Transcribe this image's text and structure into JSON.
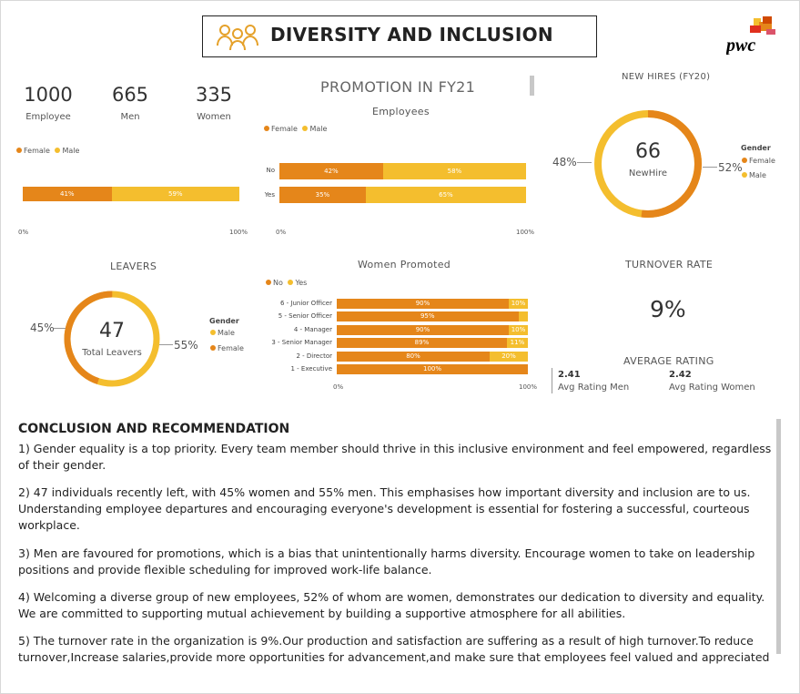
{
  "header": {
    "title": "DIVERSITY AND INCLUSION",
    "icon": "people-icon",
    "logo": "pwc"
  },
  "colors": {
    "female": "#E5861A",
    "male": "#F4BE2E",
    "track": "#E5861A"
  },
  "kpis": [
    {
      "value": "1000",
      "label": "Employee"
    },
    {
      "value": "665",
      "label": "Men"
    },
    {
      "value": "335",
      "label": "Women"
    }
  ],
  "promotion": {
    "title": "PROMOTION IN FY21",
    "subtitle": "Employees"
  },
  "women_promoted_title": "Women Promoted",
  "leavers": {
    "title": "LEAVERS",
    "center_value": "47",
    "center_label": "Total Leavers",
    "left_pct": "45%",
    "right_pct": "55%",
    "gender_title": "Gender",
    "legend": [
      "Male",
      "Female"
    ]
  },
  "new_hires": {
    "title": "NEW HIRES (FY20)",
    "center_value": "66",
    "center_label": "NewHire",
    "left_pct": "48%",
    "right_pct": "52%",
    "gender_title": "Gender",
    "legend": [
      "Female",
      "Male"
    ]
  },
  "turnover": {
    "title": "TURNOVER RATE",
    "value": "9%"
  },
  "rating": {
    "title": "AVERAGE RATING",
    "men_value": "2.41",
    "men_label": "Avg Rating Men",
    "women_value": "2.42",
    "women_label": "Avg Rating Women"
  },
  "axis": {
    "min_label": "0%",
    "max_label": "100%"
  },
  "legend_labels": {
    "female": "Female",
    "male": "Male",
    "no": "No",
    "yes": "Yes"
  },
  "chart_data": [
    {
      "type": "bar",
      "series": [
        {
          "name": "Female",
          "values": [
            41
          ]
        },
        {
          "name": "Male",
          "values": [
            59
          ]
        }
      ],
      "labels": [
        [
          "41%",
          "59%"
        ]
      ],
      "xlim": [
        0,
        100
      ]
    },
    {
      "type": "bar",
      "title": "PROMOTION IN FY21",
      "subtitle": "Employees",
      "categories": [
        "No",
        "Yes"
      ],
      "series": [
        {
          "name": "Female",
          "values": [
            42,
            35
          ]
        },
        {
          "name": "Male",
          "values": [
            58,
            65
          ]
        }
      ],
      "labels": [
        [
          "42%",
          "58%"
        ],
        [
          "35%",
          "65%"
        ]
      ],
      "xlim": [
        0,
        100
      ]
    },
    {
      "type": "bar",
      "title": "Women Promoted",
      "categories": [
        "6 - Junior Officer",
        "5 - Senior Officer",
        "4 - Manager",
        "3 - Senior Manager",
        "2 - Director",
        "1 - Executive"
      ],
      "series": [
        {
          "name": "No",
          "values": [
            90,
            95,
            90,
            89,
            80,
            100
          ]
        },
        {
          "name": "Yes",
          "values": [
            10,
            5,
            10,
            11,
            20,
            0
          ]
        }
      ],
      "labels": [
        [
          "90%",
          "10%"
        ],
        [
          "95%",
          ""
        ],
        [
          "90%",
          "10%"
        ],
        [
          "89%",
          "11%"
        ],
        [
          "80%",
          "20%"
        ],
        [
          "100%",
          ""
        ]
      ],
      "xlim": [
        0,
        100
      ]
    },
    {
      "type": "pie",
      "title": "LEAVERS",
      "categories": [
        "Female",
        "Male"
      ],
      "values": [
        45,
        55
      ]
    },
    {
      "type": "pie",
      "title": "NEW HIRES (FY20)",
      "categories": [
        "Male",
        "Female"
      ],
      "values": [
        48,
        52
      ]
    }
  ],
  "conclusion": {
    "title": "CONCLUSION AND RECOMMENDATION",
    "paragraphs": [
      "1)  Gender equality is a top priority. Every team member should thrive in this inclusive environment and feel empowered, regardless of their gender.",
      "2) 47 individuals recently left, with 45% women and 55% men. This emphasises how important diversity and inclusion are to us. Understanding employee departures and encouraging everyone's development is essential for fostering a successful, courteous workplace.",
      "3) Men are favoured for promotions, which is a bias that unintentionally harms diversity. Encourage women to take on leadership positions and provide flexible scheduling for improved work-life balance.",
      "4) Welcoming a diverse group of new employees, 52% of whom are women, demonstrates our dedication to diversity and equality. We are committed to supporting mutual achievement by building a supportive atmosphere for all abilities.",
      "5) The turnover rate in the organization is 9%.Our production and satisfaction are suffering as a result of high turnover.To reduce turnover,Increase salaries,provide more opportunities for advancement,and make sure that employees feel valued and appreciated"
    ]
  }
}
